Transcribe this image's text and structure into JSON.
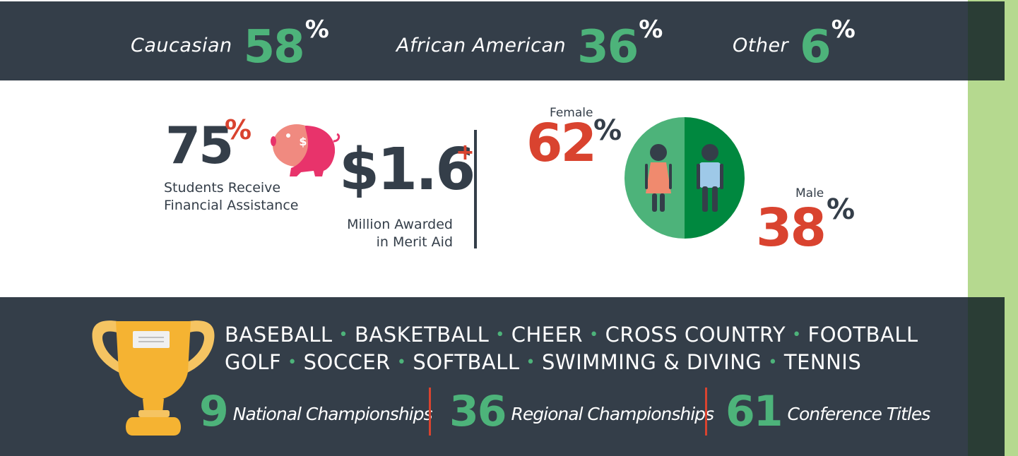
{
  "demographics": [
    {
      "label": "Caucasian",
      "value": "58",
      "unit": "%"
    },
    {
      "label": "African American",
      "value": "36",
      "unit": "%"
    },
    {
      "label": "Other",
      "value": "6",
      "unit": "%"
    }
  ],
  "financial_assistance": {
    "value": "75",
    "unit": "%",
    "line1": "Students Receive",
    "line2": "Financial Assistance"
  },
  "merit_aid": {
    "value": "$1.6",
    "plus": "+",
    "line1": "Million Awarded",
    "line2": "in Merit Aid"
  },
  "gender": {
    "female_label": "Female",
    "female_value": "62",
    "male_label": "Male",
    "male_value": "38",
    "unit": "%"
  },
  "sports": {
    "row1": [
      "BASEBALL",
      "BASKETBALL",
      "CHEER",
      "CROSS COUNTRY",
      "FOOTBALL"
    ],
    "row2": [
      "GOLF",
      "SOCCER",
      "SOFTBALL",
      "SWIMMING & DIVING",
      "TENNIS"
    ],
    "separator": "•"
  },
  "championships": [
    {
      "value": "9",
      "label": "National Championships"
    },
    {
      "value": "36",
      "label": "Regional Championships"
    },
    {
      "value": "61",
      "label": "Conference Titles"
    }
  ],
  "colors": {
    "dark": "#343e49",
    "green": "#4db37a",
    "red": "#d9432f",
    "pink": "#e8336b",
    "gold": "#f5b332",
    "side_green": "#b5d98f"
  },
  "icons": [
    "piggy-bank-icon",
    "female-figure-icon",
    "male-figure-icon",
    "trophy-icon"
  ]
}
